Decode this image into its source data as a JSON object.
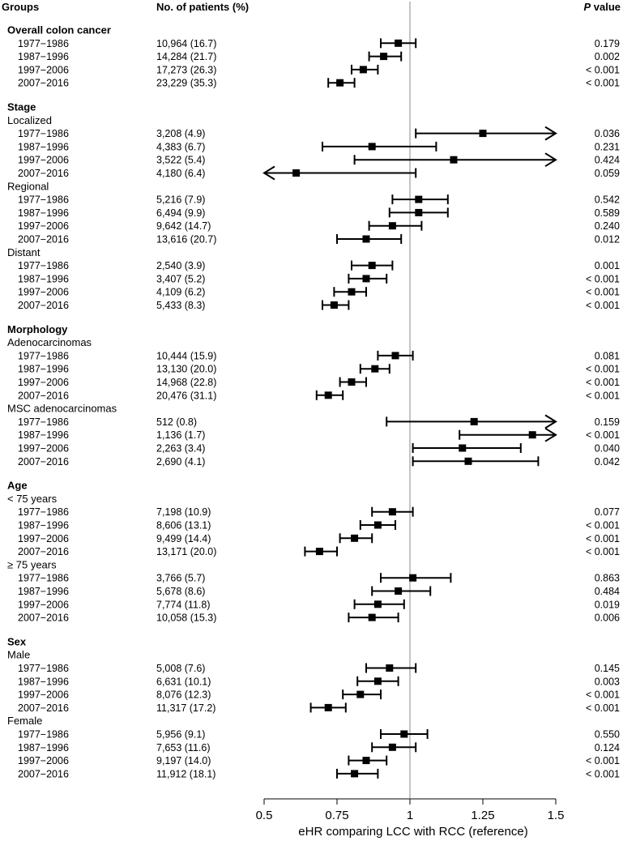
{
  "headers": {
    "groups": "Groups",
    "patients": "No. of patients (%)",
    "p_italic": "P",
    "p_rest": " value"
  },
  "chart_data": {
    "type": "forest",
    "title": "",
    "xlabel": "eHR comparing LCC with RCC (reference)",
    "xlim": [
      0.5,
      1.5
    ],
    "xticks": [
      0.5,
      0.75,
      1,
      1.25,
      1.5
    ],
    "xtick_labels": [
      "0.5",
      "0.75",
      "1",
      "1.25",
      "1.5"
    ],
    "reference_line": 1,
    "rows": [
      {
        "type": "group",
        "label": "Overall colon cancer"
      },
      {
        "type": "data",
        "label": "1977−1986",
        "n": "10,964 (16.7)",
        "p": "0.179",
        "est": 0.96,
        "lo": 0.9,
        "hi": 1.02
      },
      {
        "type": "data",
        "label": "1987−1996",
        "n": "14,284 (21.7)",
        "p": "0.002",
        "est": 0.91,
        "lo": 0.86,
        "hi": 0.97
      },
      {
        "type": "data",
        "label": "1997−2006",
        "n": "17,273 (26.3)",
        "p": "< 0.001",
        "est": 0.84,
        "lo": 0.8,
        "hi": 0.89
      },
      {
        "type": "data",
        "label": "2007−2016",
        "n": "23,229 (35.3)",
        "p": "< 0.001",
        "est": 0.76,
        "lo": 0.72,
        "hi": 0.81
      },
      {
        "type": "gap"
      },
      {
        "type": "group",
        "label": "Stage"
      },
      {
        "type": "sub",
        "label": "Localized"
      },
      {
        "type": "data",
        "label": "1977−1986",
        "n": "3,208 (4.9)",
        "p": "0.036",
        "est": 1.25,
        "lo": 1.02,
        "hi": 1.5,
        "arrow_right": true
      },
      {
        "type": "data",
        "label": "1987−1996",
        "n": "4,383 (6.7)",
        "p": "0.231",
        "est": 0.87,
        "lo": 0.7,
        "hi": 1.09
      },
      {
        "type": "data",
        "label": "1997−2006",
        "n": "3,522 (5.4)",
        "p": "0.424",
        "est": 1.15,
        "lo": 0.81,
        "hi": 1.5,
        "arrow_right": true
      },
      {
        "type": "data",
        "label": "2007−2016",
        "n": "4,180 (6.4)",
        "p": "0.059",
        "est": 0.61,
        "lo": 0.5,
        "hi": 1.02,
        "arrow_left": true
      },
      {
        "type": "sub",
        "label": "Regional"
      },
      {
        "type": "data",
        "label": "1977−1986",
        "n": "5,216 (7.9)",
        "p": "0.542",
        "est": 1.03,
        "lo": 0.94,
        "hi": 1.13
      },
      {
        "type": "data",
        "label": "1987−1996",
        "n": "6,494 (9.9)",
        "p": "0.589",
        "est": 1.03,
        "lo": 0.93,
        "hi": 1.13
      },
      {
        "type": "data",
        "label": "1997−2006",
        "n": "9,642 (14.7)",
        "p": "0.240",
        "est": 0.94,
        "lo": 0.86,
        "hi": 1.04
      },
      {
        "type": "data",
        "label": "2007−2016",
        "n": "13,616 (20.7)",
        "p": "0.012",
        "est": 0.85,
        "lo": 0.75,
        "hi": 0.97
      },
      {
        "type": "sub",
        "label": "Distant"
      },
      {
        "type": "data",
        "label": "1977−1986",
        "n": "2,540 (3.9)",
        "p": "0.001",
        "est": 0.87,
        "lo": 0.8,
        "hi": 0.94
      },
      {
        "type": "data",
        "label": "1987−1996",
        "n": "3,407 (5.2)",
        "p": "< 0.001",
        "est": 0.85,
        "lo": 0.79,
        "hi": 0.92
      },
      {
        "type": "data",
        "label": "1997−2006",
        "n": "4,109 (6.2)",
        "p": "< 0.001",
        "est": 0.8,
        "lo": 0.74,
        "hi": 0.85
      },
      {
        "type": "data",
        "label": "2007−2016",
        "n": "5,433 (8.3)",
        "p": "< 0.001",
        "est": 0.74,
        "lo": 0.7,
        "hi": 0.79
      },
      {
        "type": "gap"
      },
      {
        "type": "group",
        "label": "Morphology"
      },
      {
        "type": "sub",
        "label": "Adenocarcinomas"
      },
      {
        "type": "data",
        "label": "1977−1986",
        "n": "10,444 (15.9)",
        "p": "0.081",
        "est": 0.95,
        "lo": 0.89,
        "hi": 1.01
      },
      {
        "type": "data",
        "label": "1987−1996",
        "n": "13,130 (20.0)",
        "p": "< 0.001",
        "est": 0.88,
        "lo": 0.83,
        "hi": 0.93
      },
      {
        "type": "data",
        "label": "1997−2006",
        "n": "14,968 (22.8)",
        "p": "< 0.001",
        "est": 0.8,
        "lo": 0.76,
        "hi": 0.85
      },
      {
        "type": "data",
        "label": "2007−2016",
        "n": "20,476 (31.1)",
        "p": "< 0.001",
        "est": 0.72,
        "lo": 0.68,
        "hi": 0.77
      },
      {
        "type": "sub",
        "label": "MSC adenocarcinomas"
      },
      {
        "type": "data",
        "label": "1977−1986",
        "n": "512 (0.8)",
        "p": "0.159",
        "est": 1.22,
        "lo": 0.92,
        "hi": 1.5,
        "arrow_right": true
      },
      {
        "type": "data",
        "label": "1987−1996",
        "n": "1,136 (1.7)",
        "p": "< 0.001",
        "est": 1.42,
        "lo": 1.17,
        "hi": 1.5,
        "arrow_right": true
      },
      {
        "type": "data",
        "label": "1997−2006",
        "n": "2,263 (3.4)",
        "p": "0.040",
        "est": 1.18,
        "lo": 1.01,
        "hi": 1.38
      },
      {
        "type": "data",
        "label": "2007−2016",
        "n": "2,690 (4.1)",
        "p": "0.042",
        "est": 1.2,
        "lo": 1.01,
        "hi": 1.44
      },
      {
        "type": "gap"
      },
      {
        "type": "group",
        "label": "Age"
      },
      {
        "type": "sub",
        "label": "< 75 years"
      },
      {
        "type": "data",
        "label": "1977−1986",
        "n": "7,198 (10.9)",
        "p": "0.077",
        "est": 0.94,
        "lo": 0.87,
        "hi": 1.01
      },
      {
        "type": "data",
        "label": "1987−1996",
        "n": "8,606 (13.1)",
        "p": "< 0.001",
        "est": 0.89,
        "lo": 0.83,
        "hi": 0.95
      },
      {
        "type": "data",
        "label": "1997−2006",
        "n": "9,499 (14.4)",
        "p": "< 0.001",
        "est": 0.81,
        "lo": 0.76,
        "hi": 0.87
      },
      {
        "type": "data",
        "label": "2007−2016",
        "n": "13,171 (20.0)",
        "p": "< 0.001",
        "est": 0.69,
        "lo": 0.64,
        "hi": 0.75
      },
      {
        "type": "sub",
        "label": "≥ 75 years"
      },
      {
        "type": "data",
        "label": "1977−1986",
        "n": "3,766 (5.7)",
        "p": "0.863",
        "est": 1.01,
        "lo": 0.9,
        "hi": 1.14
      },
      {
        "type": "data",
        "label": "1987−1996",
        "n": "5,678 (8.6)",
        "p": "0.484",
        "est": 0.96,
        "lo": 0.87,
        "hi": 1.07
      },
      {
        "type": "data",
        "label": "1997−2006",
        "n": "7,774 (11.8)",
        "p": "0.019",
        "est": 0.89,
        "lo": 0.81,
        "hi": 0.98
      },
      {
        "type": "data",
        "label": "2007−2016",
        "n": "10,058 (15.3)",
        "p": "0.006",
        "est": 0.87,
        "lo": 0.79,
        "hi": 0.96
      },
      {
        "type": "gap"
      },
      {
        "type": "group",
        "label": "Sex"
      },
      {
        "type": "sub",
        "label": "Male"
      },
      {
        "type": "data",
        "label": "1977−1986",
        "n": "5,008 (7.6)",
        "p": "0.145",
        "est": 0.93,
        "lo": 0.85,
        "hi": 1.02
      },
      {
        "type": "data",
        "label": "1987−1996",
        "n": "6,631 (10.1)",
        "p": "0.003",
        "est": 0.89,
        "lo": 0.82,
        "hi": 0.96
      },
      {
        "type": "data",
        "label": "1997−2006",
        "n": "8,076 (12.3)",
        "p": "< 0.001",
        "est": 0.83,
        "lo": 0.77,
        "hi": 0.9
      },
      {
        "type": "data",
        "label": "2007−2016",
        "n": "11,317 (17.2)",
        "p": "< 0.001",
        "est": 0.72,
        "lo": 0.66,
        "hi": 0.78
      },
      {
        "type": "sub",
        "label": "Female"
      },
      {
        "type": "data",
        "label": "1977−1986",
        "n": "5,956 (9.1)",
        "p": "0.550",
        "est": 0.98,
        "lo": 0.9,
        "hi": 1.06
      },
      {
        "type": "data",
        "label": "1987−1996",
        "n": "7,653 (11.6)",
        "p": "0.124",
        "est": 0.94,
        "lo": 0.87,
        "hi": 1.02
      },
      {
        "type": "data",
        "label": "1997−2006",
        "n": "9,197 (14.0)",
        "p": "< 0.001",
        "est": 0.85,
        "lo": 0.79,
        "hi": 0.92
      },
      {
        "type": "data",
        "label": "2007−2016",
        "n": "11,912 (18.1)",
        "p": "< 0.001",
        "est": 0.81,
        "lo": 0.75,
        "hi": 0.89
      }
    ]
  }
}
